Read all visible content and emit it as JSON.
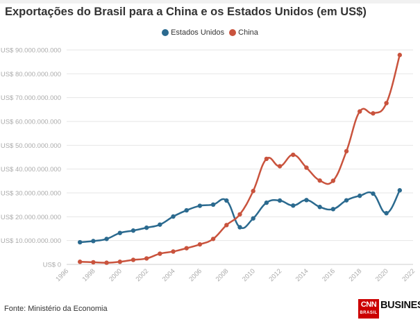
{
  "title": "Exportações do Brasil para a China e os Estados Unidos (em US$)",
  "source": "Fonte: Ministério da Economia",
  "brand": {
    "logo_text": "CNN",
    "logo_subtext": "BRASIL",
    "name": "BUSINESS",
    "dot": "."
  },
  "colors": {
    "Estados Unidos": "#2b6a8f",
    "China": "#c9533d"
  },
  "chart_data": {
    "type": "line",
    "title": "Exportações do Brasil para a China e os Estados Unidos (em US$)",
    "xlabel": "",
    "ylabel": "",
    "xlim": [
      1996,
      2022
    ],
    "ylim": [
      0,
      90000000000
    ],
    "grid": true,
    "legend_position": "top-center",
    "x_ticks": [
      "1996",
      "1998",
      "2000",
      "2002",
      "2004",
      "2006",
      "2008",
      "2010",
      "2012",
      "2014",
      "2016",
      "2018",
      "2020",
      "2022"
    ],
    "y_ticks": [
      "US$ 0",
      "US$ 10.000.000.000",
      "US$ 20.000.000.000",
      "US$ 30.000.000.000",
      "US$ 40.000.000.000",
      "US$ 50.000.000.000",
      "US$ 60.000.000.000",
      "US$ 70.000.000.000",
      "US$ 80.000.000.000",
      "US$ 90.000.000.000"
    ],
    "x": [
      1997,
      1998,
      1999,
      2000,
      2001,
      2002,
      2003,
      2004,
      2005,
      2006,
      2007,
      2008,
      2009,
      2010,
      2011,
      2012,
      2013,
      2014,
      2015,
      2016,
      2017,
      2018,
      2019,
      2020,
      2021
    ],
    "series": [
      {
        "name": "Estados Unidos",
        "values": [
          9300000000,
          9800000000,
          10700000000,
          13200000000,
          14200000000,
          15400000000,
          16700000000,
          20100000000,
          22700000000,
          24600000000,
          25100000000,
          26800000000,
          15600000000,
          19300000000,
          25900000000,
          26800000000,
          24700000000,
          27000000000,
          24100000000,
          23200000000,
          26900000000,
          28800000000,
          29700000000,
          21500000000,
          31100000000
        ]
      },
      {
        "name": "China",
        "values": [
          1100000000,
          900000000,
          700000000,
          1100000000,
          1900000000,
          2500000000,
          4500000000,
          5400000000,
          6800000000,
          8400000000,
          10700000000,
          16500000000,
          21000000000,
          30800000000,
          44300000000,
          41200000000,
          46000000000,
          40600000000,
          35200000000,
          35100000000,
          47500000000,
          64200000000,
          63400000000,
          67700000000,
          87900000000
        ]
      }
    ]
  }
}
